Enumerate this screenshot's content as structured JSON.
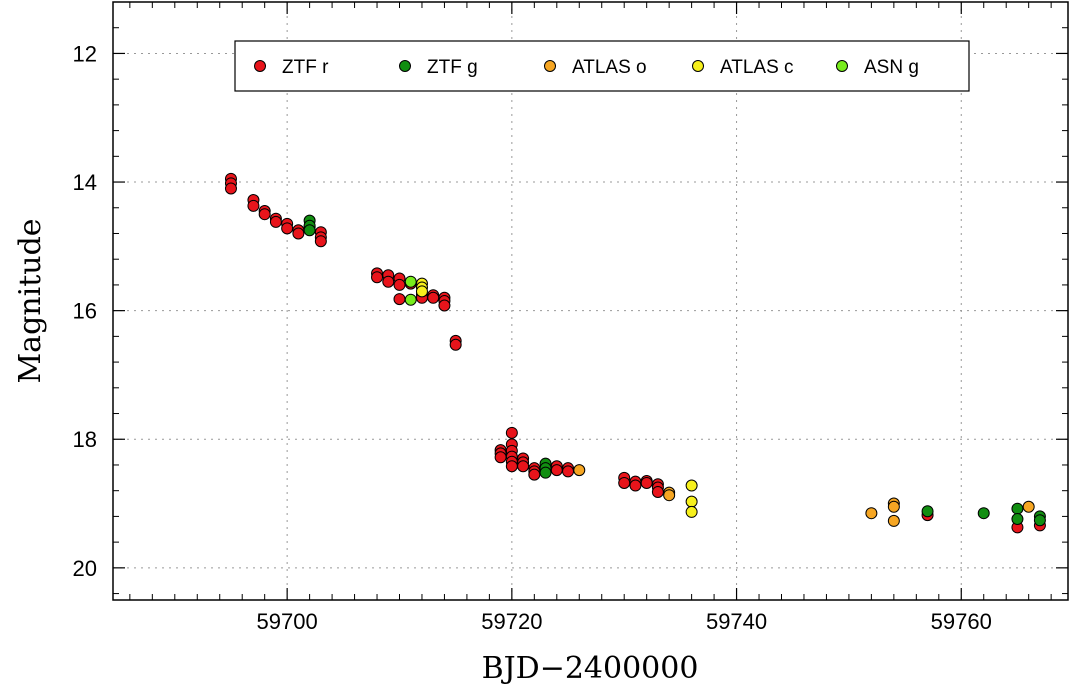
{
  "chart_data": {
    "type": "scatter",
    "xlabel": "BJD−2400000",
    "ylabel": "Magnitude",
    "xlim": [
      59684.5,
      59769.5
    ],
    "ylim": [
      20.5,
      11.2
    ],
    "y_inverted": true,
    "grid": true,
    "legend_position": "top",
    "x_ticks": [
      59700,
      59720,
      59740,
      59760
    ],
    "y_ticks": [
      12,
      14,
      16,
      18,
      20
    ],
    "series": [
      {
        "name": "ZTF r",
        "color": "#e8141b",
        "points": [
          [
            59695.0,
            13.95
          ],
          [
            59695.0,
            14.02
          ],
          [
            59695.0,
            14.1
          ],
          [
            59697.0,
            14.28
          ],
          [
            59697.0,
            14.37
          ],
          [
            59698.0,
            14.45
          ],
          [
            59698.0,
            14.5
          ],
          [
            59699.0,
            14.57
          ],
          [
            59699.0,
            14.62
          ],
          [
            59700.0,
            14.65
          ],
          [
            59700.0,
            14.72
          ],
          [
            59701.0,
            14.75
          ],
          [
            59701.0,
            14.8
          ],
          [
            59702.0,
            14.7
          ],
          [
            59703.0,
            14.78
          ],
          [
            59703.0,
            14.86
          ],
          [
            59703.0,
            14.92
          ],
          [
            59708.0,
            15.42
          ],
          [
            59708.0,
            15.48
          ],
          [
            59709.0,
            15.45
          ],
          [
            59709.0,
            15.55
          ],
          [
            59710.0,
            15.5
          ],
          [
            59710.0,
            15.6
          ],
          [
            59710.0,
            15.82
          ],
          [
            59711.0,
            15.58
          ],
          [
            59712.0,
            15.75
          ],
          [
            59712.0,
            15.8
          ],
          [
            59713.0,
            15.76
          ],
          [
            59713.0,
            15.8
          ],
          [
            59714.0,
            15.8
          ],
          [
            59714.0,
            15.85
          ],
          [
            59714.0,
            15.92
          ],
          [
            59715.0,
            16.47
          ],
          [
            59715.0,
            16.53
          ],
          [
            59719.0,
            18.17
          ],
          [
            59719.0,
            18.22
          ],
          [
            59719.0,
            18.28
          ],
          [
            59720.0,
            17.9
          ],
          [
            59720.0,
            18.08
          ],
          [
            59720.0,
            18.18
          ],
          [
            59720.0,
            18.27
          ],
          [
            59720.0,
            18.35
          ],
          [
            59720.0,
            18.42
          ],
          [
            59721.0,
            18.3
          ],
          [
            59721.0,
            18.36
          ],
          [
            59721.0,
            18.42
          ],
          [
            59722.0,
            18.45
          ],
          [
            59722.0,
            18.5
          ],
          [
            59722.0,
            18.55
          ],
          [
            59723.0,
            18.46
          ],
          [
            59723.0,
            18.5
          ],
          [
            59724.0,
            18.42
          ],
          [
            59724.0,
            18.48
          ],
          [
            59725.0,
            18.45
          ],
          [
            59725.0,
            18.5
          ],
          [
            59730.0,
            18.6
          ],
          [
            59730.0,
            18.68
          ],
          [
            59731.0,
            18.66
          ],
          [
            59731.0,
            18.72
          ],
          [
            59732.0,
            18.65
          ],
          [
            59732.0,
            18.68
          ],
          [
            59733.0,
            18.7
          ],
          [
            59733.0,
            18.75
          ],
          [
            59733.0,
            18.82
          ],
          [
            59757.0,
            19.18
          ],
          [
            59765.0,
            19.37
          ],
          [
            59767.0,
            19.34
          ]
        ]
      },
      {
        "name": "ZTF g",
        "color": "#118e11",
        "points": [
          [
            59702.0,
            14.6
          ],
          [
            59702.0,
            14.68
          ],
          [
            59702.0,
            14.75
          ],
          [
            59723.0,
            18.38
          ],
          [
            59723.0,
            18.45
          ],
          [
            59723.0,
            18.52
          ],
          [
            59757.0,
            19.12
          ],
          [
            59762.0,
            19.15
          ],
          [
            59765.0,
            19.08
          ],
          [
            59765.0,
            19.24
          ],
          [
            59767.0,
            19.2
          ],
          [
            59767.0,
            19.26
          ]
        ]
      },
      {
        "name": "ATLAS o",
        "color": "#f6a623",
        "points": [
          [
            59726.0,
            18.48
          ],
          [
            59734.0,
            18.83
          ],
          [
            59734.0,
            18.87
          ],
          [
            59752.0,
            19.15
          ],
          [
            59754.0,
            19.0
          ],
          [
            59754.0,
            19.05
          ],
          [
            59754.0,
            19.27
          ],
          [
            59766.0,
            19.05
          ]
        ]
      },
      {
        "name": "ATLAS c",
        "color": "#f7f01c",
        "points": [
          [
            59712.0,
            15.58
          ],
          [
            59712.0,
            15.64
          ],
          [
            59712.0,
            15.7
          ],
          [
            59736.0,
            18.72
          ],
          [
            59736.0,
            18.97
          ],
          [
            59736.0,
            19.13
          ]
        ]
      },
      {
        "name": "ASN g",
        "color": "#78ec1c",
        "points": [
          [
            59711.0,
            15.55
          ],
          [
            59711.0,
            15.83
          ]
        ]
      }
    ]
  }
}
